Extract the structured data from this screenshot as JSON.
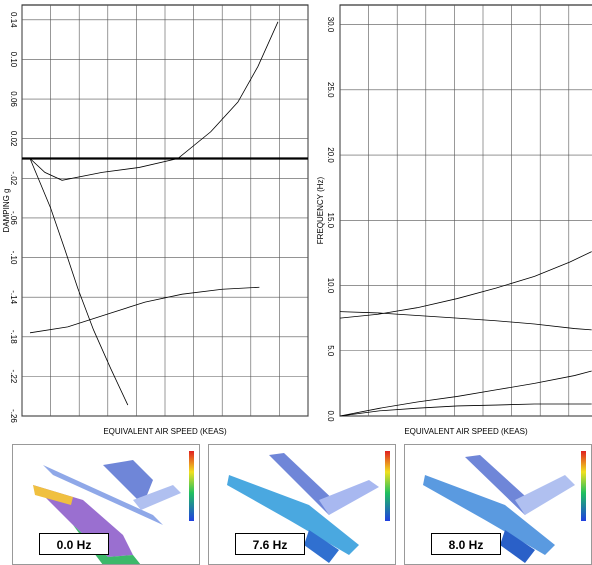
{
  "chart_data": [
    {
      "type": "line",
      "ylabel": "DAMPING g",
      "xlabel": "EQUIVALENT AIR SPEED (KEAS)",
      "xlim": [
        0,
        10
      ],
      "xticks": [
        0,
        1,
        2,
        3,
        4,
        5,
        6,
        7,
        8,
        9,
        10
      ],
      "ylim": [
        -0.26,
        0.155
      ],
      "yticks": [
        {
          "value": 0.14,
          "label": "0.14"
        },
        {
          "value": 0.1,
          "label": "0.10"
        },
        {
          "value": 0.06,
          "label": "0.06"
        },
        {
          "value": 0.02,
          "label": "0.02"
        },
        {
          "value": -0.02,
          "label": "-.02"
        },
        {
          "value": -0.06,
          "label": "-.06"
        },
        {
          "value": -0.1,
          "label": "-.10"
        },
        {
          "value": -0.14,
          "label": "-.14"
        },
        {
          "value": -0.18,
          "label": "-.18"
        },
        {
          "value": -0.22,
          "label": "-.22"
        },
        {
          "value": -0.26,
          "label": "-.26"
        }
      ],
      "grid": true,
      "series": [
        {
          "color": "#000000",
          "x": [
            0.28,
            0.8,
            1.4,
            2.8,
            4.1,
            5.45,
            6.6,
            7.55,
            8.25,
            8.95
          ],
          "values": [
            0,
            -0.014,
            -0.022,
            -0.014,
            -0.009,
            0,
            0.027,
            0.057,
            0.093,
            0.138
          ]
        },
        {
          "color": "#000000",
          "x": [
            0.28,
            1.0,
            1.5,
            1.95,
            2.5,
            3.1,
            3.7
          ],
          "values": [
            0,
            -0.05,
            -0.092,
            -0.131,
            -0.173,
            -0.212,
            -0.249
          ]
        },
        {
          "color": "#000000",
          "x": [
            0.28,
            1.6,
            3.0,
            4.3,
            5.6,
            7.0,
            8.3
          ],
          "values": [
            -0.176,
            -0.17,
            -0.157,
            -0.145,
            -0.137,
            -0.132,
            -0.13
          ]
        }
      ]
    },
    {
      "type": "line",
      "ylabel": "FREQUENCY (Hz)",
      "xlabel": "EQUIVALENT AIR SPEED (KEAS)",
      "xlim": [
        0,
        10
      ],
      "xticks": [
        0,
        1,
        2,
        3,
        4,
        5,
        6,
        7,
        8,
        9,
        10
      ],
      "ylim": [
        0,
        31.5
      ],
      "yticks": [
        {
          "value": 0,
          "label": "0.0"
        },
        {
          "value": 5,
          "label": "5.0"
        },
        {
          "value": 10,
          "label": "10.0"
        },
        {
          "value": 15,
          "label": "15.0"
        },
        {
          "value": 20,
          "label": "20.0"
        },
        {
          "value": 25,
          "label": "25.0"
        },
        {
          "value": 30,
          "label": "30.0"
        }
      ],
      "grid": true,
      "series": [
        {
          "color": "#000000",
          "x": [
            0,
            1.33,
            2.7,
            4.1,
            5.45,
            6.8,
            8.04,
            8.8
          ],
          "values": [
            7.5,
            7.8,
            8.3,
            9.0,
            9.8,
            10.7,
            11.8,
            12.6
          ]
        },
        {
          "color": "#000000",
          "x": [
            0,
            1.33,
            2.7,
            4.1,
            5.45,
            6.8,
            8.2,
            8.8
          ],
          "values": [
            8.0,
            7.9,
            7.7,
            7.5,
            7.3,
            7.05,
            6.7,
            6.6
          ]
        },
        {
          "color": "#000000",
          "x": [
            0,
            1.4,
            2.7,
            4.1,
            5.45,
            6.8,
            8.2,
            8.8
          ],
          "values": [
            0,
            0.6,
            1.07,
            1.5,
            2.0,
            2.5,
            3.1,
            3.45
          ]
        },
        {
          "color": "#000000",
          "x": [
            0,
            1.4,
            2.7,
            4.1,
            5.45,
            6.8,
            8.2,
            8.8
          ],
          "values": [
            0,
            0.4,
            0.6,
            0.77,
            0.84,
            0.92,
            0.92,
            0.92
          ]
        }
      ]
    }
  ],
  "mode_shapes": [
    {
      "label": "0.0 Hz"
    },
    {
      "label": "7.6 Hz"
    },
    {
      "label": "8.0 Hz"
    }
  ]
}
